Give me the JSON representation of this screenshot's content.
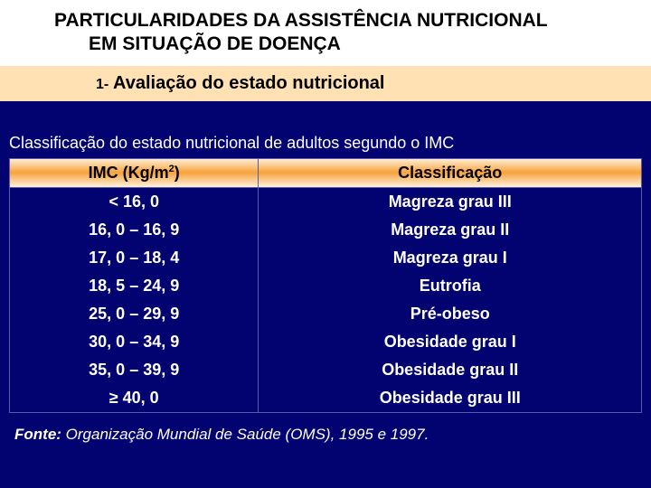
{
  "title": {
    "line1": "PARTICULARIDADES DA ASSISTÊNCIA NUTRICIONAL",
    "line2": "EM  SITUAÇÃO DE DOENÇA"
  },
  "subtitle": {
    "prefix": "1-",
    "text": " Avaliação do estado nutricional"
  },
  "table": {
    "caption": "Classificação do estado nutricional de adultos segundo o IMC",
    "header": {
      "col1_pre": "IMC (Kg/m",
      "col1_sup": "2",
      "col1_post": ")",
      "col2": "Classificação"
    },
    "rows": [
      {
        "c1": "< 16, 0",
        "c2": "Magreza grau III"
      },
      {
        "c1": "16, 0 – 16, 9",
        "c2": "Magreza grau II"
      },
      {
        "c1": "17, 0 – 18, 4",
        "c2": "Magreza grau I"
      },
      {
        "c1": "18, 5 – 24, 9",
        "c2": "Eutrofia"
      },
      {
        "c1": "25, 0 – 29, 9",
        "c2": "Pré-obeso"
      },
      {
        "c1": "30, 0 – 34, 9",
        "c2": "Obesidade grau I"
      },
      {
        "c1": "35, 0 – 39, 9",
        "c2": "Obesidade grau II"
      },
      {
        "c1": "≥ 40, 0",
        "c2": "Obesidade grau III"
      }
    ]
  },
  "source": {
    "label": "Fonte:",
    "text": " Organização Mundial de Saúde (OMS), 1995 e 1997."
  },
  "colors": {
    "background": "#020270",
    "title_bg": "#ffffff",
    "subtitle_bg": "#ffe1b4",
    "header_grad_light": "#fff0d8",
    "header_grad_mid": "#f7a33c",
    "border": "#5a5aa8",
    "text_light": "#ffffff",
    "text_dark": "#000000"
  }
}
